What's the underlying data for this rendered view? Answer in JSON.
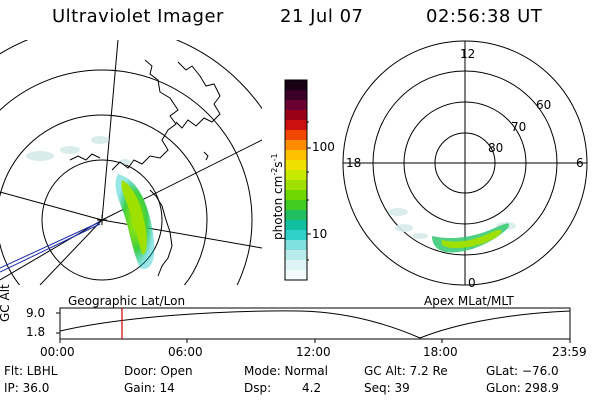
{
  "header": {
    "title": "Ultraviolet Imager",
    "date": "21 Jul 07",
    "time": "02:56:38 UT"
  },
  "colorbar": {
    "unit_main": "photon cm",
    "unit_exp1": "-2",
    "unit_s": "s",
    "unit_exp2": "-1",
    "tick_high": "100",
    "tick_low": "10"
  },
  "polar_plot": {
    "label_top": "12",
    "label_left": "18",
    "label_right": "6",
    "label_bottom": "0",
    "lat_60": "60",
    "lat_70": "70",
    "lat_80": "80",
    "caption": "Apex MLat/MLT"
  },
  "geo_plot": {
    "caption": "Geographic Lat/Lon"
  },
  "altitude_chart": {
    "ylabel": "GC Alt",
    "y_high": "9.0",
    "y_low": "1.8",
    "x_ticks": [
      "00:00",
      "06:00",
      "12:00",
      "18:00",
      "23:59"
    ]
  },
  "info": {
    "flt": "Flt: LBHL",
    "ip": "IP: 36.0",
    "door": "Door: Open",
    "gain": "Gain: 14",
    "mode": "Mode: Normal",
    "dsp_label": "Dsp:",
    "dsp_value": "4.2",
    "gcalt": "GC Alt: 7.2 Re",
    "seq": "Seq: 39",
    "glat": "GLat: −76.0",
    "glon": "GLon: 298.9"
  },
  "colors": {
    "cursor": "#cc0000",
    "track": "#000000",
    "aurora_core": "#8ee000",
    "aurora_edge": "#00c0a0"
  }
}
